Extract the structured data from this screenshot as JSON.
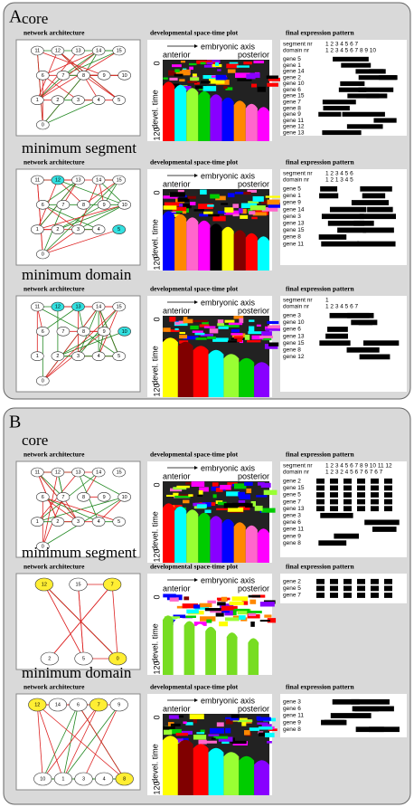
{
  "panels": [
    {
      "label": "A",
      "rows": [
        {
          "title": "core",
          "network_title": "network architecture",
          "plot_title": "developmental space-time plot",
          "pattern_title": "final expression pattern",
          "axis_label": "embryonic axis",
          "anterior": "anterior",
          "posterior": "posterior",
          "time_label": "devel. time",
          "time_start": "0",
          "time_end": "120",
          "nodes": [
            "11",
            "12",
            "13",
            "14",
            "15",
            "6",
            "7",
            "8",
            "9",
            "10",
            "1",
            "2",
            "3",
            "4",
            "5",
            "0"
          ],
          "highlight": [],
          "segment_label": "segment nr",
          "segment_numbers": "1 2  3  4  5  6   7",
          "domain_label": "domain nr",
          "domain_numbers": "1 2 3 4 5 6 7 8 9 10",
          "genes": [
            "gene 5",
            "gene 1",
            "gene 14",
            "gene 2",
            "gene 10",
            "gene 6",
            "gene 15",
            "gene 7",
            "gene 8",
            "gene 9",
            "gene 11",
            "gene 12",
            "gene 13"
          ]
        },
        {
          "title": "minimum segment",
          "network_title": "network architecture",
          "plot_title": "developmental space-time plot",
          "pattern_title": "final expression pattern",
          "axis_label": "embryonic axis",
          "anterior": "anterior",
          "posterior": "posterior",
          "time_label": "devel. time",
          "time_start": "0",
          "time_end": "120",
          "nodes": [
            "11",
            "12",
            "13",
            "14",
            "15",
            "6",
            "7",
            "8",
            "9",
            "10",
            "1",
            "2",
            "3",
            "4",
            "5",
            "0"
          ],
          "highlight": [
            "12",
            "5"
          ],
          "segment_label": "segment nr",
          "segment_numbers": "1   2   3   4    5     6",
          "domain_label": "domain nr",
          "domain_numbers": "1   2   1   3    4     5",
          "genes": [
            "gene 5",
            "gene 1",
            "gene 9",
            "gene 14",
            "gene 3",
            "gene 13",
            "gene 15",
            "gene 8",
            "gene 11"
          ]
        },
        {
          "title": "minimum domain",
          "network_title": "network architecture",
          "plot_title": "developmental space-time plot",
          "pattern_title": "final expression pattern",
          "axis_label": "embryonic axis",
          "anterior": "anterior",
          "posterior": "posterior",
          "time_label": "devel. time",
          "time_start": "0",
          "time_end": "120",
          "nodes": [
            "11",
            "12",
            "13",
            "14",
            "15",
            "6",
            "7",
            "8",
            "9",
            "10",
            "1",
            "2",
            "3",
            "4",
            "5",
            "0"
          ],
          "highlight": [
            "12",
            "13",
            "10"
          ],
          "segment_label": "segment nr",
          "segment_numbers": "1",
          "domain_label": "domain nr",
          "domain_numbers": "1  2  3 4 5  6   7",
          "genes": [
            "gene 3",
            "gene 10",
            "gene 6",
            "gene 13",
            "gene 15",
            "gene 8",
            "gene 12"
          ]
        }
      ]
    },
    {
      "label": "B",
      "rows": [
        {
          "title": "core",
          "network_title": "network architecture",
          "plot_title": "developmental space-time plot",
          "pattern_title": "final expression pattern",
          "axis_label": "embryonic axis",
          "anterior": "anterior",
          "posterior": "posterior",
          "time_label": "devel. time",
          "time_start": "0",
          "time_end": "120",
          "nodes": [
            "11",
            "12",
            "13",
            "14",
            "15",
            "6",
            "7",
            "8",
            "9",
            "10",
            "1",
            "2",
            "3",
            "4",
            "5",
            "0"
          ],
          "highlight": [],
          "segment_label": "segment nr",
          "segment_numbers": "1 2 3 4 5 6 7 8 9 10 11 12",
          "domain_label": "domain nr",
          "domain_numbers": "1 2 3 2 4 5 6 7 6 7 6 7",
          "genes": [
            "gene 2",
            "gene 15",
            "gene 5",
            "gene 7",
            "gene 13",
            "gene 3",
            "gene 6",
            "gene 11",
            "gene 9",
            "gene 8"
          ]
        },
        {
          "title": "minimum segment",
          "network_title": "network architecture",
          "plot_title": "developmental space-time plot",
          "pattern_title": "final expression pattern",
          "axis_label": "embryonic axis",
          "anterior": "anterior",
          "posterior": "posterior",
          "time_label": "devel. time",
          "time_start": "0",
          "time_end": "120",
          "nodes": [
            "12",
            "15",
            "7",
            "2",
            "5",
            "0"
          ],
          "highlight": [
            "12",
            "7",
            "0"
          ],
          "genes": [
            "gene 2",
            "gene 5",
            "gene 7"
          ]
        },
        {
          "title": "minimum domain",
          "network_title": "network architecture",
          "plot_title": "developmental space-time plot",
          "pattern_title": "final expression pattern",
          "axis_label": "embryonic axis",
          "anterior": "anterior",
          "posterior": "posterior",
          "time_label": "devel. time",
          "time_start": "0",
          "time_end": "120",
          "nodes": [
            "12",
            "14",
            "6",
            "7",
            "9",
            "10",
            "1",
            "3",
            "4",
            "8"
          ],
          "highlight": [
            "12",
            "7",
            "8"
          ],
          "genes": [
            "gene 3",
            "gene 6",
            "gene 11",
            "gene 9",
            "gene 8"
          ]
        }
      ]
    }
  ]
}
